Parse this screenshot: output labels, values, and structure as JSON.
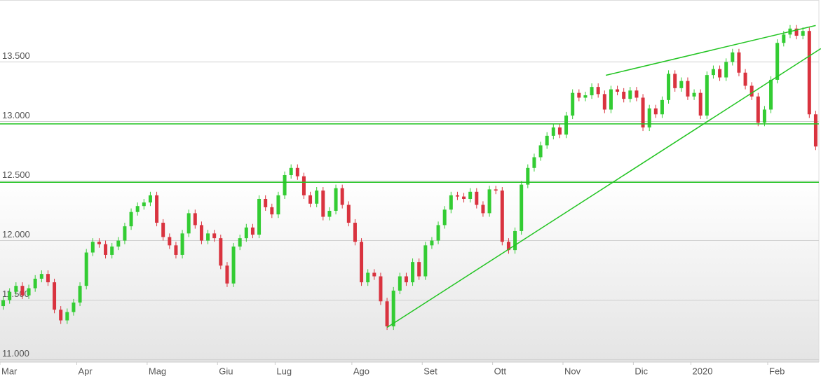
{
  "chart_data": {
    "type": "candlestick",
    "categories": [
      "Mar",
      null,
      null,
      null,
      null,
      null,
      null,
      null,
      null,
      null,
      null,
      null,
      "Apr",
      null,
      null,
      null,
      null,
      null,
      null,
      null,
      null,
      null,
      null,
      "Mag",
      null,
      null,
      null,
      null,
      null,
      null,
      null,
      null,
      null,
      null,
      "Giu",
      null,
      null,
      null,
      null,
      null,
      null,
      null,
      null,
      "Lug",
      null,
      null,
      null,
      null,
      null,
      null,
      null,
      null,
      null,
      null,
      null,
      "Ago",
      null,
      null,
      null,
      null,
      null,
      null,
      null,
      null,
      null,
      null,
      "Set",
      null,
      null,
      null,
      null,
      null,
      null,
      null,
      null,
      null,
      null,
      "Ott",
      null,
      null,
      null,
      null,
      null,
      null,
      null,
      null,
      null,
      null,
      "Nov",
      null,
      null,
      null,
      null,
      null,
      null,
      null,
      null,
      null,
      null,
      "Dic",
      null,
      null,
      null,
      null,
      null,
      null,
      null,
      null,
      "2020",
      null,
      null,
      null,
      null,
      null,
      null,
      null,
      null,
      null,
      null,
      null,
      "Feb",
      null,
      null,
      null,
      null,
      null,
      null,
      null
    ],
    "open": [
      11450,
      11500,
      11570,
      11620,
      11540,
      11600,
      11680,
      11720,
      11650,
      11420,
      11330,
      11400,
      11480,
      11620,
      11900,
      11990,
      11970,
      11880,
      11950,
      12000,
      12120,
      12240,
      12290,
      12320,
      12380,
      12150,
      12030,
      11960,
      11880,
      12060,
      12230,
      12130,
      12000,
      12060,
      12020,
      11790,
      11640,
      11950,
      12020,
      12110,
      12050,
      12350,
      12280,
      12220,
      12380,
      12550,
      12610,
      12540,
      12380,
      12310,
      12420,
      12200,
      12250,
      12440,
      12300,
      12150,
      11990,
      11650,
      11730,
      11700,
      11490,
      11280,
      11580,
      11700,
      11650,
      11820,
      11700,
      11960,
      12000,
      12130,
      12260,
      12380,
      12370,
      12350,
      12410,
      12300,
      12230,
      12430,
      12420,
      11990,
      11920,
      12080,
      12470,
      12610,
      12700,
      12800,
      12880,
      12950,
      12890,
      13050,
      13240,
      13200,
      13220,
      13290,
      13230,
      13100,
      13270,
      13250,
      13190,
      13260,
      13200,
      12950,
      13110,
      13060,
      13180,
      13400,
      13280,
      13340,
      13210,
      13240,
      13050,
      13390,
      13440,
      13370,
      13500,
      13580,
      13410,
      13300,
      13210,
      12990,
      13100,
      13350,
      13660,
      13730,
      13780,
      13720,
      13760,
      13060
    ],
    "high": [
      11530,
      11600,
      11650,
      11650,
      11630,
      11710,
      11750,
      11750,
      11680,
      11450,
      11430,
      11510,
      11650,
      11930,
      12020,
      12020,
      12000,
      11980,
      12030,
      12150,
      12270,
      12320,
      12350,
      12410,
      12410,
      12180,
      12060,
      11990,
      12090,
      12260,
      12260,
      12160,
      12090,
      12090,
      12050,
      11820,
      11980,
      12050,
      12140,
      12140,
      12380,
      12380,
      12310,
      12410,
      12580,
      12640,
      12640,
      12570,
      12410,
      12450,
      12450,
      12280,
      12470,
      12470,
      12330,
      12180,
      12020,
      11760,
      11760,
      11730,
      11520,
      11610,
      11730,
      11730,
      11850,
      11850,
      11990,
      12030,
      12160,
      12290,
      12410,
      12410,
      12400,
      12440,
      12440,
      12330,
      12460,
      12460,
      12450,
      12020,
      12110,
      12500,
      12640,
      12730,
      12830,
      12910,
      12980,
      12980,
      13080,
      13270,
      13270,
      13250,
      13320,
      13320,
      13260,
      13300,
      13300,
      13280,
      13290,
      13290,
      13230,
      13140,
      13140,
      13210,
      13430,
      13430,
      13370,
      13370,
      13270,
      13270,
      13420,
      13470,
      13470,
      13530,
      13610,
      13610,
      13440,
      13330,
      13240,
      13130,
      13380,
      13690,
      13760,
      13810,
      13810,
      13790,
      13790,
      13090
    ],
    "low": [
      11420,
      11470,
      11540,
      11510,
      11510,
      11570,
      11650,
      11620,
      11390,
      11300,
      11300,
      11370,
      11450,
      11590,
      11870,
      11940,
      11850,
      11850,
      11920,
      11970,
      12090,
      12210,
      12260,
      12290,
      12120,
      12000,
      11930,
      11850,
      11850,
      12030,
      12100,
      11970,
      11970,
      11990,
      11760,
      11610,
      11610,
      11920,
      11990,
      12020,
      12020,
      12250,
      12190,
      12190,
      12350,
      12520,
      12510,
      12350,
      12280,
      12280,
      12170,
      12170,
      12220,
      12270,
      12120,
      11960,
      11620,
      11620,
      11670,
      11460,
      11250,
      11250,
      11550,
      11620,
      11620,
      11670,
      11670,
      11930,
      11970,
      12100,
      12230,
      12340,
      12320,
      12320,
      12270,
      12200,
      12200,
      12390,
      11960,
      11890,
      11890,
      12050,
      12440,
      12580,
      12670,
      12770,
      12850,
      12860,
      12860,
      13020,
      13170,
      13170,
      13190,
      13200,
      13070,
      13070,
      13220,
      13160,
      13160,
      13170,
      12920,
      12920,
      13030,
      13030,
      13150,
      13250,
      13250,
      13180,
      13180,
      13020,
      13020,
      13360,
      13340,
      13340,
      13470,
      13380,
      13270,
      13180,
      12960,
      12960,
      13070,
      13320,
      13630,
      13700,
      13690,
      13690,
      13030,
      12760
    ],
    "close": [
      11500,
      11570,
      11620,
      11540,
      11600,
      11680,
      11720,
      11650,
      11420,
      11330,
      11400,
      11480,
      11620,
      11900,
      11990,
      11970,
      11880,
      11950,
      12000,
      12120,
      12240,
      12290,
      12320,
      12380,
      12150,
      12030,
      11960,
      11880,
      12060,
      12230,
      12130,
      12000,
      12060,
      12020,
      11790,
      11640,
      11950,
      12020,
      12110,
      12050,
      12350,
      12280,
      12220,
      12380,
      12550,
      12610,
      12540,
      12380,
      12310,
      12420,
      12200,
      12250,
      12440,
      12300,
      12150,
      11990,
      11650,
      11730,
      11700,
      11490,
      11280,
      11580,
      11700,
      11650,
      11820,
      11700,
      11960,
      12000,
      12130,
      12260,
      12380,
      12370,
      12350,
      12410,
      12300,
      12230,
      12430,
      12420,
      11990,
      11920,
      12080,
      12470,
      12610,
      12700,
      12800,
      12880,
      12950,
      12890,
      13050,
      13240,
      13200,
      13220,
      13290,
      13230,
      13100,
      13270,
      13250,
      13190,
      13260,
      13200,
      12950,
      13110,
      13060,
      13180,
      13400,
      13280,
      13340,
      13210,
      13240,
      13050,
      13390,
      13440,
      13370,
      13500,
      13580,
      13410,
      13300,
      13210,
      12990,
      13100,
      13350,
      13660,
      13730,
      13780,
      13720,
      13760,
      13060,
      12790
    ],
    "up_color": "#33cc33",
    "down_color": "#d9333f",
    "line_color": "#22c422",
    "ylim": [
      10980,
      14020
    ],
    "yticks": [
      {
        "value": 11000,
        "label": "11.000"
      },
      {
        "value": 11500,
        "label": "11.500"
      },
      {
        "value": 12000,
        "label": "12.000"
      },
      {
        "value": 12500,
        "label": "12.500"
      },
      {
        "value": 13000,
        "label": "13.000"
      },
      {
        "value": 13500,
        "label": "13.500"
      }
    ],
    "grid": true,
    "hlines": [
      12980,
      12490
    ],
    "trendlines": [
      {
        "x": [
          60,
          127.8
        ],
        "y": [
          11271,
          13612
        ]
      },
      {
        "x": [
          94.2,
          127
        ],
        "y": [
          13388,
          13806
        ]
      }
    ]
  }
}
